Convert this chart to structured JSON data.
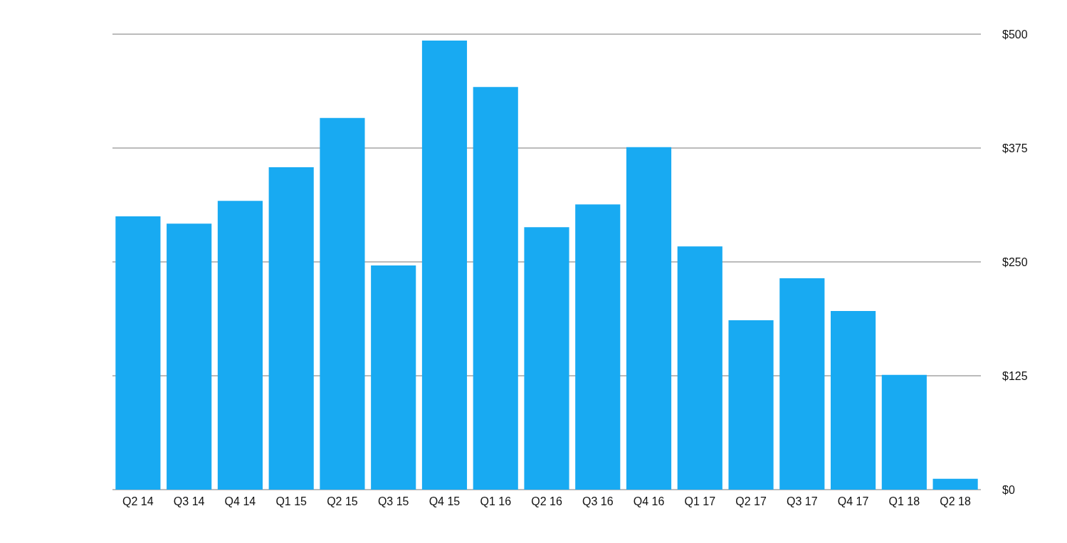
{
  "chart_data": {
    "type": "bar",
    "categories": [
      "Q2 14",
      "Q3 14",
      "Q4 14",
      "Q1 15",
      "Q2 15",
      "Q3 15",
      "Q4 15",
      "Q1 16",
      "Q2 16",
      "Q3 16",
      "Q4 16",
      "Q1 17",
      "Q2 17",
      "Q3 17",
      "Q4 17",
      "Q1 18",
      "Q2 18"
    ],
    "values": [
      300,
      292,
      317,
      354,
      408,
      246,
      493,
      442,
      288,
      313,
      376,
      267,
      186,
      232,
      196,
      126,
      12
    ],
    "color": "#18aaf2",
    "ylim": [
      0,
      500
    ],
    "yticks": [
      {
        "value": 0,
        "label": "$0"
      },
      {
        "value": 125,
        "label": "$125"
      },
      {
        "value": 250,
        "label": "$250"
      },
      {
        "value": 375,
        "label": "$375"
      },
      {
        "value": 500,
        "label": "$500"
      }
    ],
    "grid": "y"
  }
}
